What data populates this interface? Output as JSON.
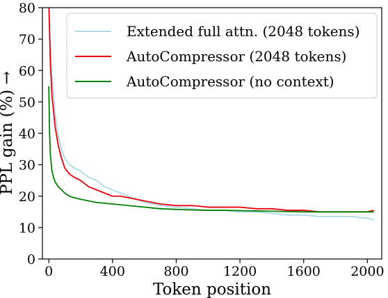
{
  "chart_data": {
    "type": "line",
    "title": "",
    "xlabel": "Token position",
    "ylabel": "PPL gain (%) →",
    "xlim": [
      -40,
      2090
    ],
    "ylim": [
      0,
      80
    ],
    "xticks": [
      0,
      400,
      800,
      1200,
      1600,
      2000
    ],
    "xtick_labels": [
      "0",
      "400",
      "800",
      "1200",
      "1600",
      "2000"
    ],
    "yticks": [
      0,
      10,
      20,
      30,
      40,
      50,
      60,
      70,
      80
    ],
    "ytick_labels": [
      "0",
      "10",
      "20",
      "30",
      "40",
      "50",
      "60",
      "70",
      "80"
    ],
    "grid": false,
    "legend_position": "top-right",
    "series": [
      {
        "name": "Extended full attn. (2048 tokens)",
        "color": "#add8e6",
        "x": [
          0,
          10,
          20,
          40,
          60,
          80,
          100,
          130,
          160,
          200,
          250,
          300,
          350,
          400,
          450,
          500,
          550,
          600,
          700,
          800,
          900,
          1000,
          1100,
          1200,
          1300,
          1400,
          1500,
          1600,
          1700,
          1800,
          1900,
          2000,
          2040
        ],
        "y": [
          82,
          68,
          58,
          46,
          39,
          35,
          32,
          30,
          29,
          28,
          26,
          25,
          23,
          22,
          21,
          20,
          19,
          18,
          17,
          16.5,
          16,
          15.5,
          15.5,
          15,
          15,
          14.5,
          14,
          14,
          13.5,
          13.5,
          13.5,
          13,
          12.5
        ]
      },
      {
        "name": "AutoCompressor (2048 tokens)",
        "color": "#e8000b",
        "x": [
          0,
          10,
          20,
          40,
          60,
          80,
          100,
          130,
          160,
          200,
          250,
          300,
          350,
          400,
          450,
          500,
          550,
          600,
          700,
          800,
          900,
          1000,
          1100,
          1200,
          1300,
          1400,
          1500,
          1600,
          1700,
          1800,
          1900,
          2000,
          2040
        ],
        "y": [
          82,
          62,
          52,
          42,
          36,
          32,
          29,
          27,
          26,
          25,
          23,
          22,
          21,
          20,
          20,
          19.5,
          19,
          18.5,
          17.5,
          17,
          17,
          16.5,
          16.5,
          16.5,
          16,
          16,
          15.5,
          15.5,
          15,
          15,
          15,
          15,
          15.5
        ]
      },
      {
        "name": "AutoCompressor (no context)",
        "color": "#008000",
        "x": [
          0,
          5,
          10,
          20,
          30,
          40,
          60,
          80,
          100,
          130,
          160,
          200,
          250,
          300,
          400,
          500,
          600,
          700,
          800,
          900,
          1000,
          1100,
          1200,
          1300,
          1400,
          1500,
          1600,
          1700,
          1800,
          1900,
          2000,
          2040
        ],
        "y": [
          55,
          40,
          33,
          28,
          26,
          24.5,
          23,
          22,
          21,
          20,
          19.5,
          19,
          18.5,
          18,
          17.5,
          17,
          16.5,
          16,
          15.8,
          15.6,
          15.5,
          15.5,
          15.4,
          15.3,
          15.2,
          15.1,
          15,
          15,
          15,
          15,
          15,
          15
        ]
      }
    ]
  }
}
